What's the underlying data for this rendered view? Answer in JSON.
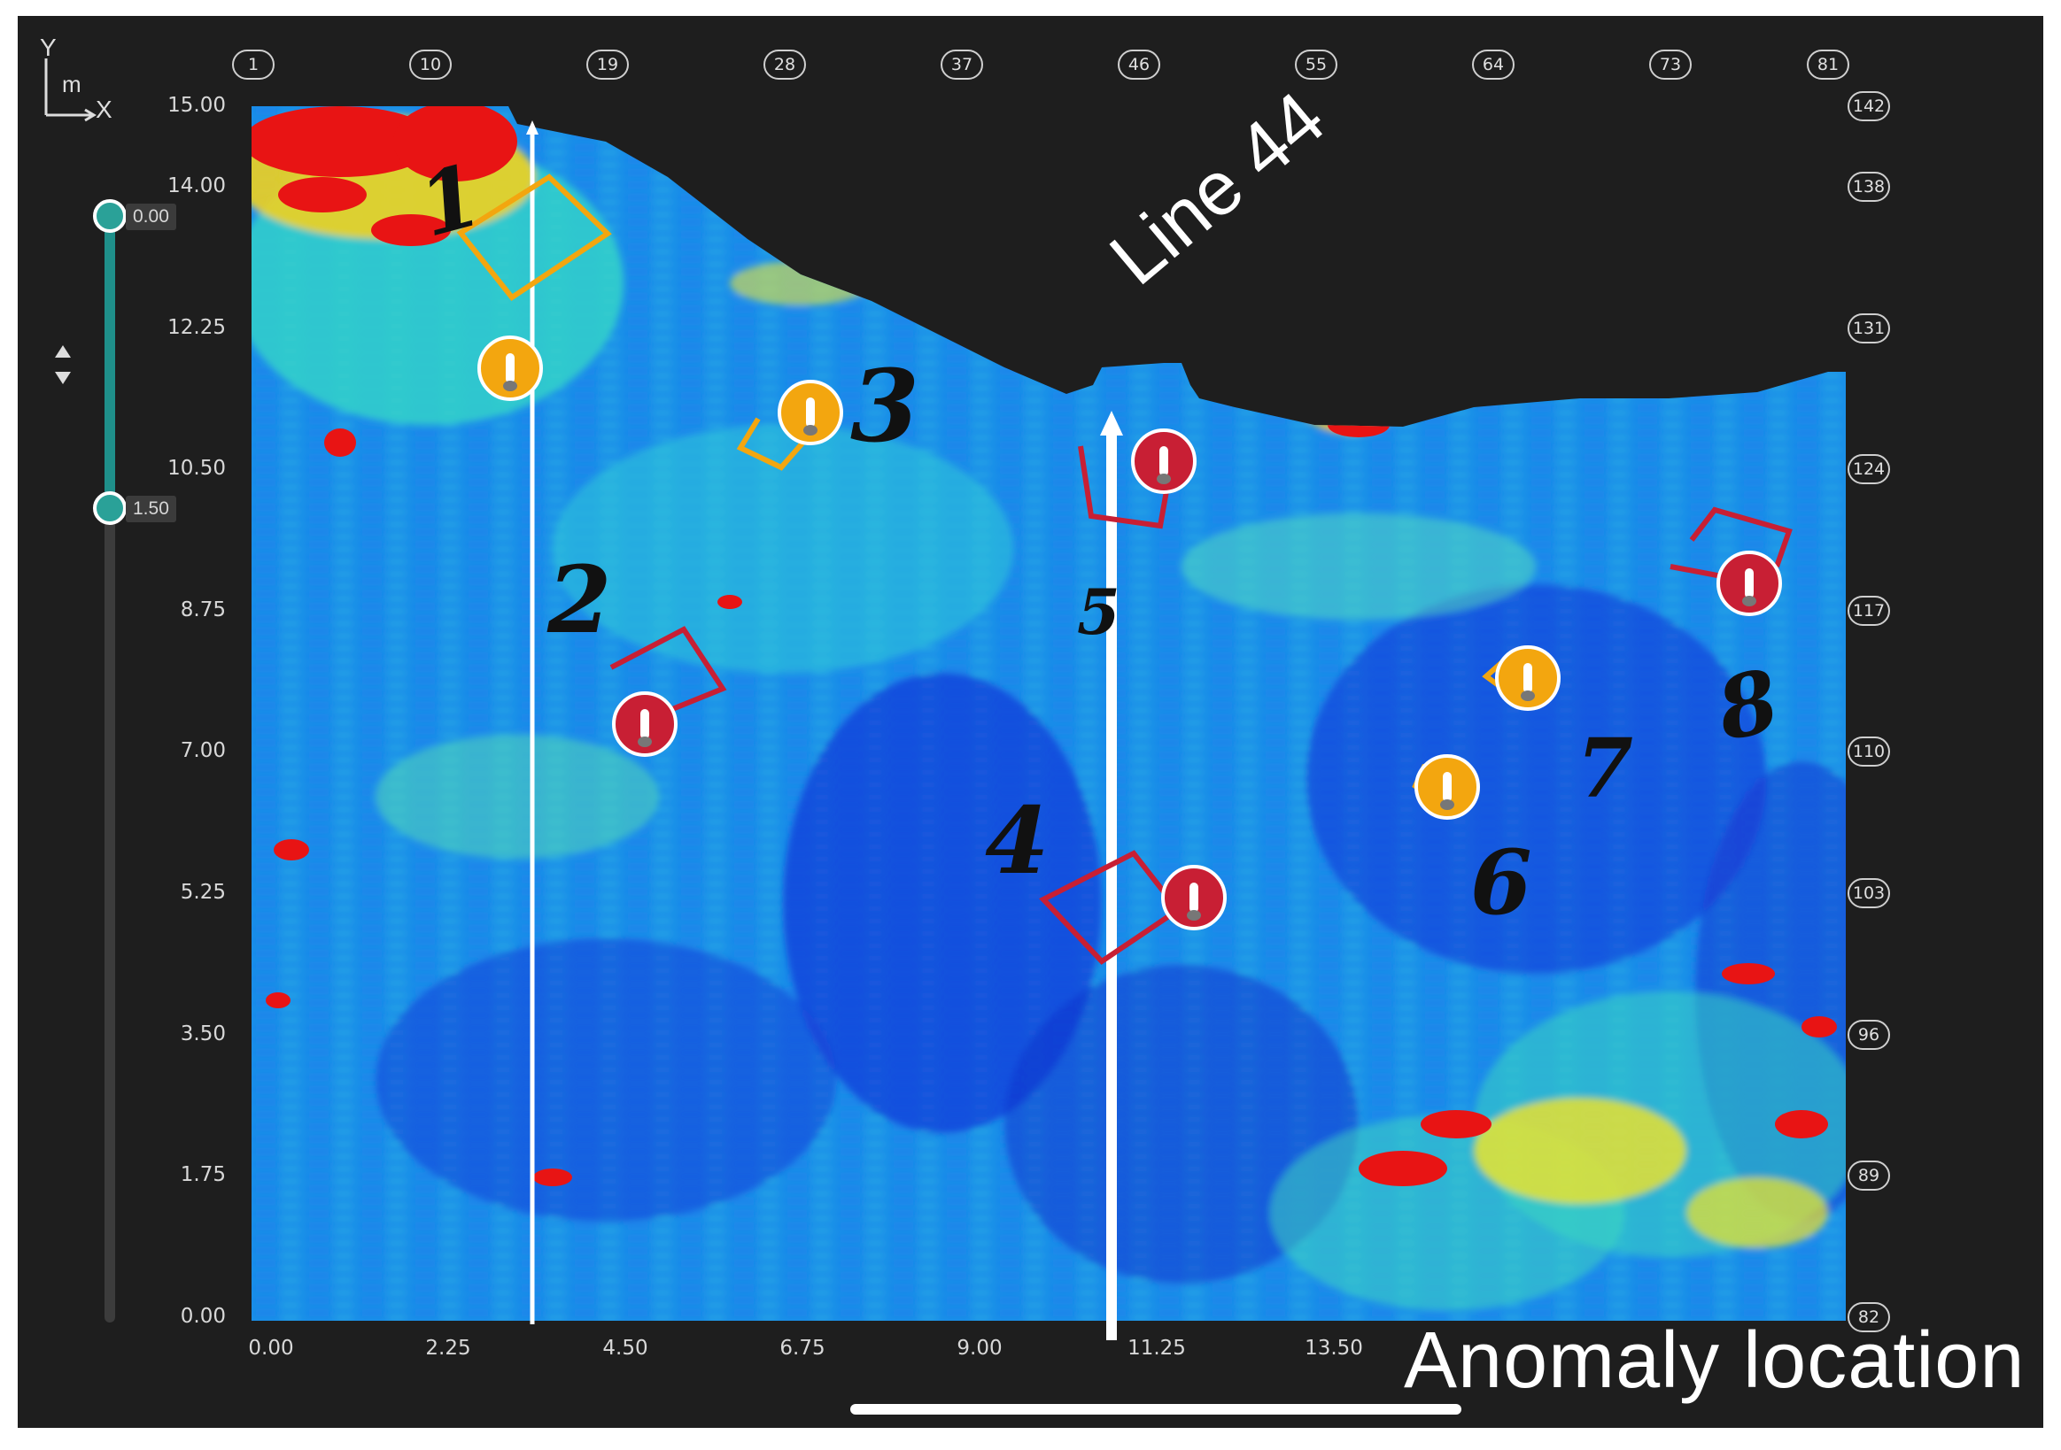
{
  "axes": {
    "y_label": "Y",
    "unit_label": "m",
    "x_label": "X",
    "y_ticks": [
      "15.00",
      "14.00",
      "12.25",
      "10.50",
      "8.75",
      "7.00",
      "5.25",
      "3.50",
      "1.75",
      "0.00"
    ],
    "x_ticks": [
      "0.00",
      "2.25",
      "4.50",
      "6.75",
      "9.00",
      "11.25",
      "13.50"
    ]
  },
  "top_line_numbers": [
    "1",
    "10",
    "19",
    "28",
    "37",
    "46",
    "55",
    "64",
    "73",
    "81"
  ],
  "right_sample_numbers": [
    "142",
    "138",
    "131",
    "124",
    "117",
    "110",
    "103",
    "96",
    "89",
    "82"
  ],
  "depth_slider": {
    "top_value": "0.00",
    "bottom_value": "1.50"
  },
  "annotations": {
    "line_label": "Line 44",
    "caption": "Anomaly location",
    "anomaly_numbers": [
      "1",
      "2",
      "3",
      "4",
      "5",
      "6",
      "7",
      "8"
    ]
  },
  "markers": [
    {
      "id": "1",
      "color": "yellow"
    },
    {
      "id": "2",
      "color": "red"
    },
    {
      "id": "3",
      "color": "yellow"
    },
    {
      "id": "4",
      "color": "red"
    },
    {
      "id": "5",
      "color": "red"
    },
    {
      "id": "6",
      "color": "yellow"
    },
    {
      "id": "7",
      "color": "yellow"
    },
    {
      "id": "8",
      "color": "red"
    }
  ],
  "colors": {
    "background": "#1e1e1e",
    "heatmap_low": "#0a1fd6",
    "heatmap_mid": "#19c3e6",
    "heatmap_high": "#e61414",
    "slider_accent": "#2aa198"
  },
  "colormap": "jet"
}
